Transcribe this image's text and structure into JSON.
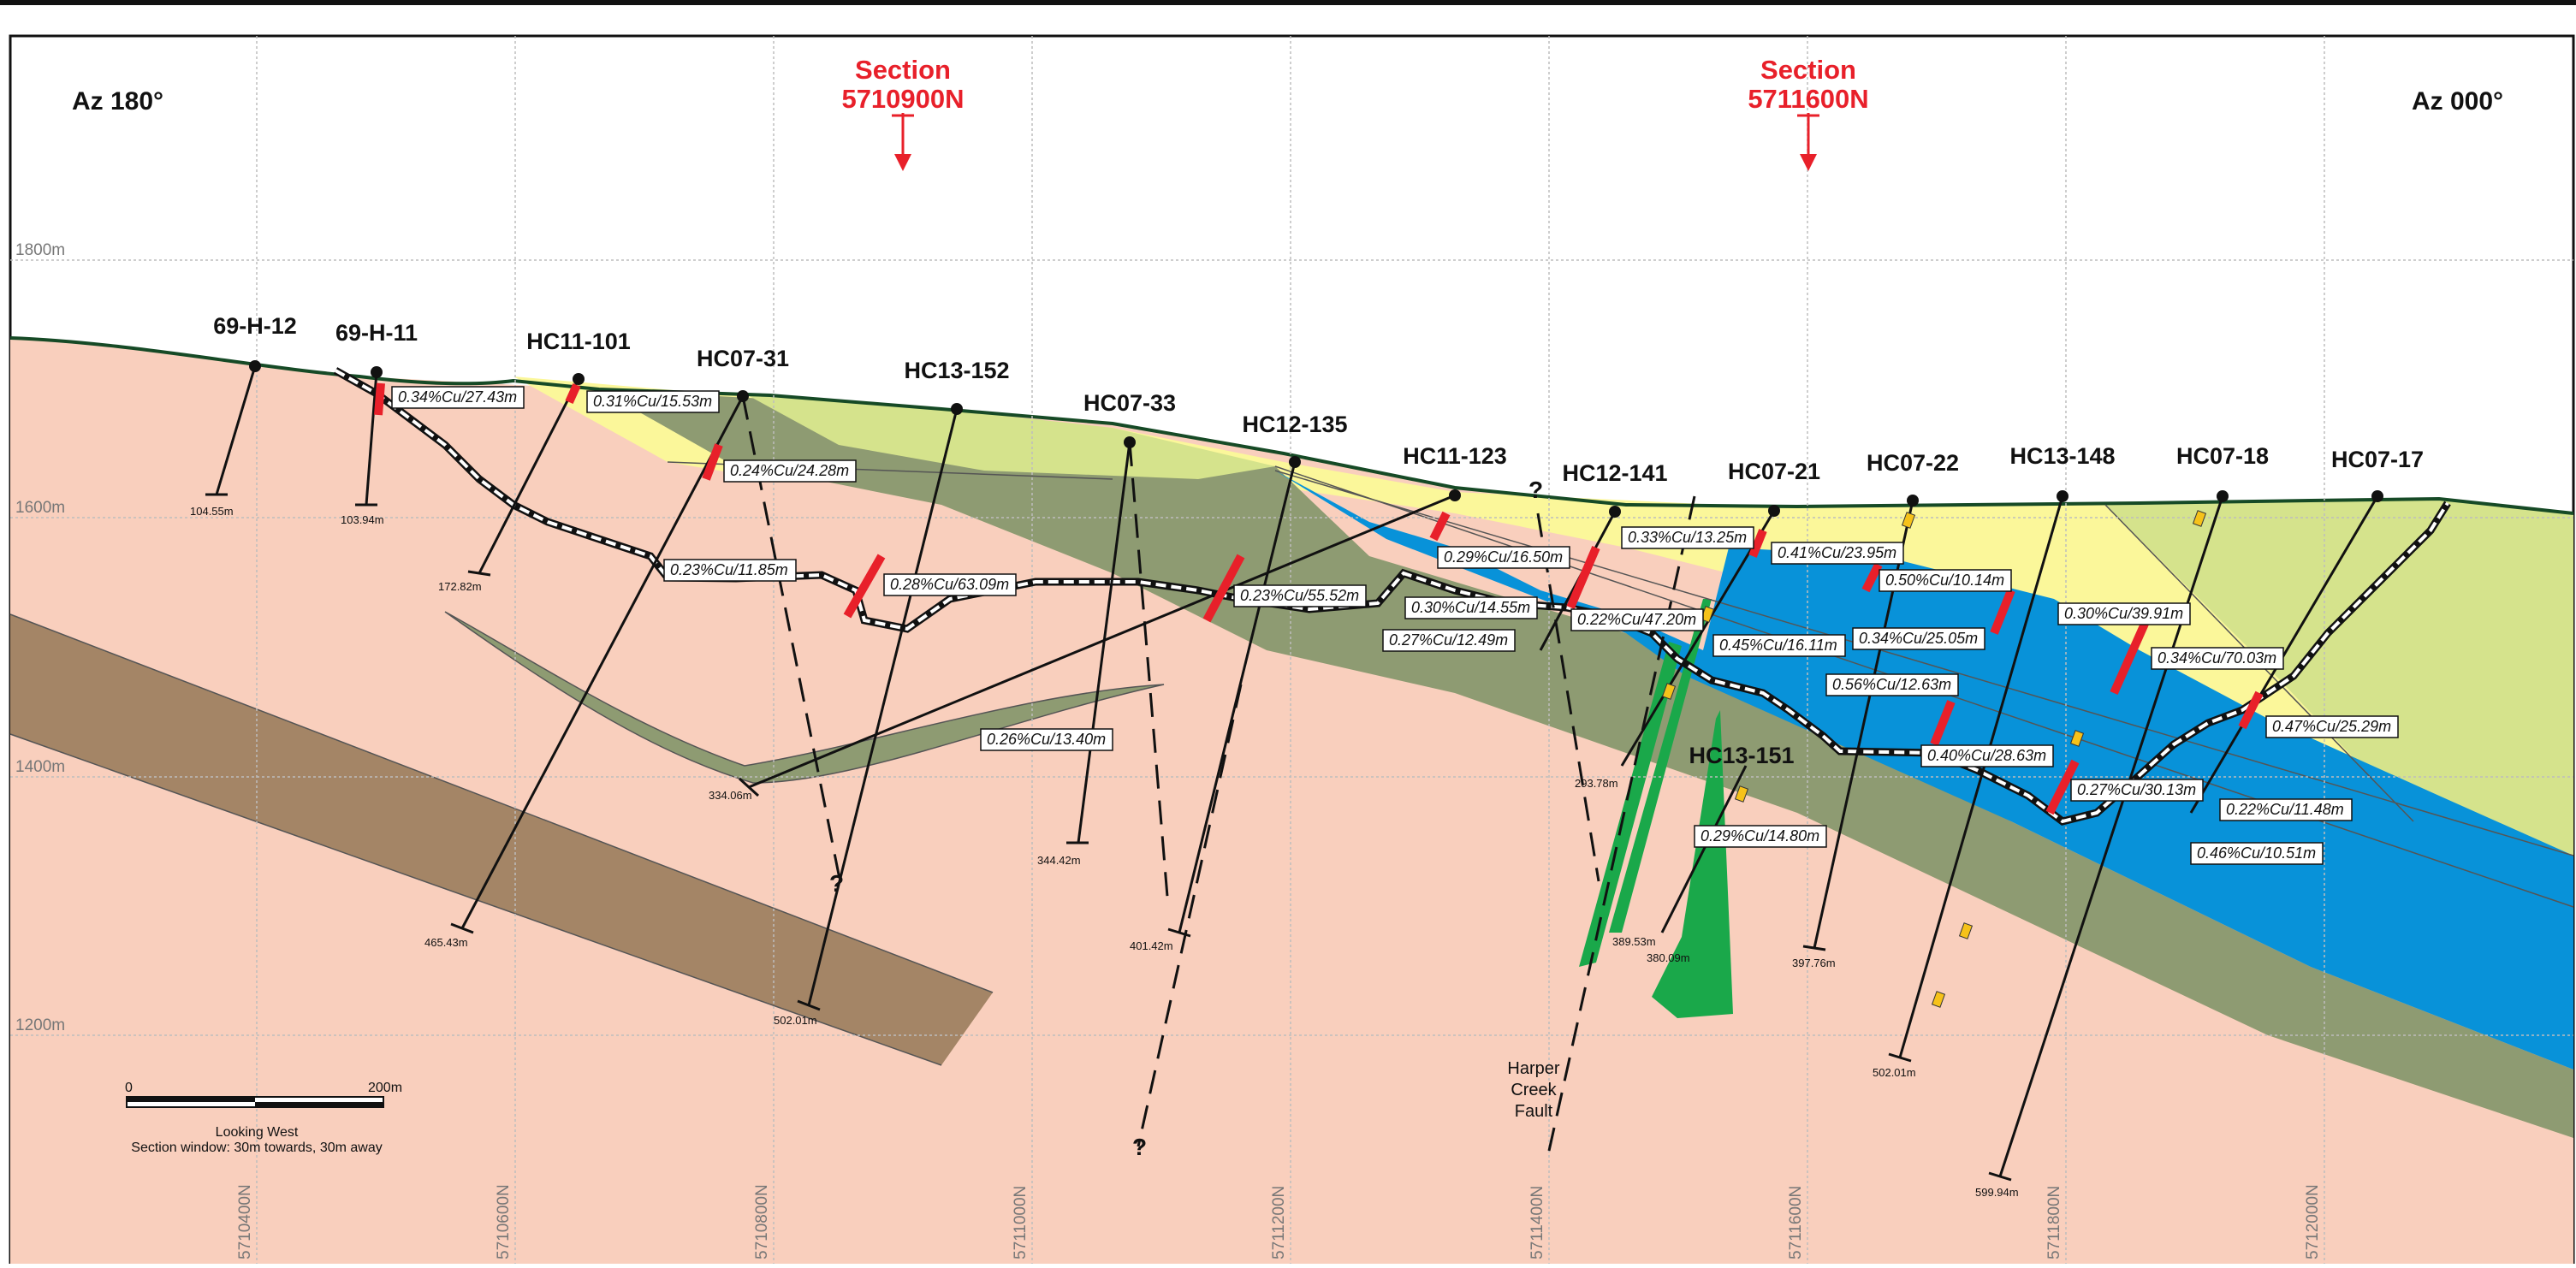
{
  "orientation": {
    "left": "Az 180°",
    "right": "Az 000°"
  },
  "sections": [
    {
      "title": "Section",
      "northing": "5710900N"
    },
    {
      "title": "Section",
      "northing": "5711600N"
    }
  ],
  "elevations": [
    "1800m",
    "1600m",
    "1400m",
    "1200m"
  ],
  "northing_ticks": [
    "5710400N",
    "5710600N",
    "5710800N",
    "5711000N",
    "5711200N",
    "5711400N",
    "5711600N",
    "5711800N",
    "5712000N"
  ],
  "drillholes": [
    {
      "name": "69-H-12",
      "depth": "104.55m"
    },
    {
      "name": "69-H-11",
      "depth": "103.94m"
    },
    {
      "name": "HC11-101",
      "depth": "172.82m"
    },
    {
      "name": "HC07-31",
      "depth": "465.43m"
    },
    {
      "name": "HC13-152",
      "depth": "502.01m"
    },
    {
      "name": "HC07-33",
      "depth": "344.42m"
    },
    {
      "name": "HC12-135",
      "depth": "401.42m"
    },
    {
      "name": "HC11-123",
      "depth": "334.06m"
    },
    {
      "name": "HC12-141",
      "depth": "293.78m"
    },
    {
      "name": "HC07-21",
      "depth": "389.53m"
    },
    {
      "name": "HC07-22",
      "depth": "397.76m"
    },
    {
      "name": "HC13-148",
      "depth": "502.01m"
    },
    {
      "name": "HC07-18",
      "depth": "599.94m"
    },
    {
      "name": "HC07-17",
      "depth": ""
    },
    {
      "name": "HC13-151",
      "depth": "380.09m"
    }
  ],
  "assays": [
    "0.34%Cu/27.43m",
    "0.31%Cu/15.53m",
    "0.24%Cu/24.28m",
    "0.23%Cu/11.85m",
    "0.28%Cu/63.09m",
    "0.26%Cu/13.40m",
    "0.23%Cu/55.52m",
    "0.29%Cu/16.50m",
    "0.30%Cu/14.55m",
    "0.27%Cu/12.49m",
    "0.22%Cu/47.20m",
    "0.33%Cu/13.25m",
    "0.41%Cu/23.95m",
    "0.50%Cu/10.14m",
    "0.45%Cu/16.11m",
    "0.34%Cu/25.05m",
    "0.56%Cu/12.63m",
    "0.30%Cu/39.91m",
    "0.34%Cu/70.03m",
    "0.40%Cu/28.63m",
    "0.47%Cu/25.29m",
    "0.27%Cu/30.13m",
    "0.22%Cu/11.48m",
    "0.29%Cu/14.80m",
    "0.46%Cu/10.51m"
  ],
  "fault": {
    "line1": "Harper",
    "line2": "Creek",
    "line3": "Fault"
  },
  "question_mark": "?",
  "scale": {
    "start": "0",
    "end": "200m",
    "view": "Looking West",
    "window": "Section window: 30m towards, 30m away"
  },
  "colors": {
    "pink": "#f9cfbd",
    "yellow": "#fbf79a",
    "dark_green": "#8e9b72",
    "light_green": "#d5e38c",
    "blue": "#0892d9",
    "brown": "#a48566",
    "section_red": "#e8202a",
    "vein_green": "#1aa84a"
  }
}
